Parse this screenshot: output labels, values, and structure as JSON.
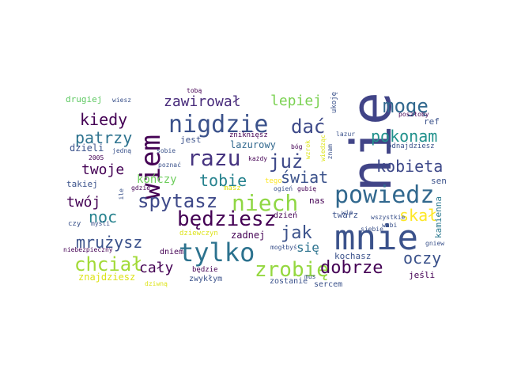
{
  "palette": {
    "dark_purple": "#440154",
    "indigo": "#3b3a8b",
    "blue": "#31688e",
    "teal": "#21918c",
    "green": "#35b779",
    "lime": "#90d743",
    "yellow": "#d8e219"
  },
  "words": [
    {
      "text": "nie"
    },
    {
      "text": "mnie"
    },
    {
      "text": "wiem"
    },
    {
      "text": "powiedz"
    },
    {
      "text": "tylko"
    },
    {
      "text": "nigdzie"
    },
    {
      "text": "niech"
    },
    {
      "text": "razu"
    },
    {
      "text": "będziesz"
    },
    {
      "text": "zrobię"
    },
    {
      "text": "spytasz"
    },
    {
      "text": "chciał"
    },
    {
      "text": "dać"
    },
    {
      "text": "mogę"
    },
    {
      "text": "już"
    },
    {
      "text": "kobieta"
    },
    {
      "text": "dobrze"
    },
    {
      "text": "jak"
    },
    {
      "text": "tobie"
    },
    {
      "text": "patrzy"
    },
    {
      "text": "kiedy"
    },
    {
      "text": "świat"
    },
    {
      "text": "pokonam"
    },
    {
      "text": "oczy"
    },
    {
      "text": "skał"
    },
    {
      "text": "mrużysz"
    },
    {
      "text": "noc"
    },
    {
      "text": "twój"
    },
    {
      "text": "twoje"
    },
    {
      "text": "zawirował"
    },
    {
      "text": "lepiej"
    },
    {
      "text": "cały"
    },
    {
      "text": "się"
    },
    {
      "text": "kończy"
    },
    {
      "text": "kamienna"
    },
    {
      "text": "lazurowy"
    },
    {
      "text": "zadnej"
    },
    {
      "text": "znajdziesz"
    },
    {
      "text": "kochasz"
    },
    {
      "text": "jeśli"
    },
    {
      "text": "dzieli"
    },
    {
      "text": "takiej"
    },
    {
      "text": "drugiej"
    },
    {
      "text": "sen"
    },
    {
      "text": "ref"
    },
    {
      "text": "jest"
    },
    {
      "text": "odnajdziesz"
    },
    {
      "text": "ukoję"
    },
    {
      "text": "twarz"
    },
    {
      "text": "nas"
    },
    {
      "text": "dzień"
    },
    {
      "text": "dniem"
    },
    {
      "text": "zostanie"
    },
    {
      "text": "zwykłym"
    },
    {
      "text": "będzie"
    },
    {
      "text": "sercem"
    },
    {
      "text": "dziewczyn"
    },
    {
      "text": "czy"
    },
    {
      "text": "myśli"
    },
    {
      "text": "niebezpieczny"
    },
    {
      "text": "gdzie"
    },
    {
      "text": "wiesz"
    },
    {
      "text": "jedną"
    },
    {
      "text": "zniknięsz"
    },
    {
      "text": "poznać"
    },
    {
      "text": "sobie"
    },
    {
      "text": "każdy"
    },
    {
      "text": "wzrok"
    },
    {
      "text": "bóg"
    },
    {
      "text": "lazur"
    },
    {
      "text": "poszłoby"
    },
    {
      "text": "tobą"
    },
    {
      "text": "wiedząc"
    },
    {
      "text": "znam"
    },
    {
      "text": "2005"
    },
    {
      "text": "ile"
    },
    {
      "text": "masz"
    },
    {
      "text": "tego"
    },
    {
      "text": "ogień"
    },
    {
      "text": "gubię"
    },
    {
      "text": "wie"
    },
    {
      "text": "siebie"
    },
    {
      "text": "wszystkie"
    },
    {
      "text": "wabi"
    },
    {
      "text": "gniew"
    },
    {
      "text": "mogłbyś"
    },
    {
      "text": "dziwną"
    },
    {
      "text": "mus"
    }
  ]
}
